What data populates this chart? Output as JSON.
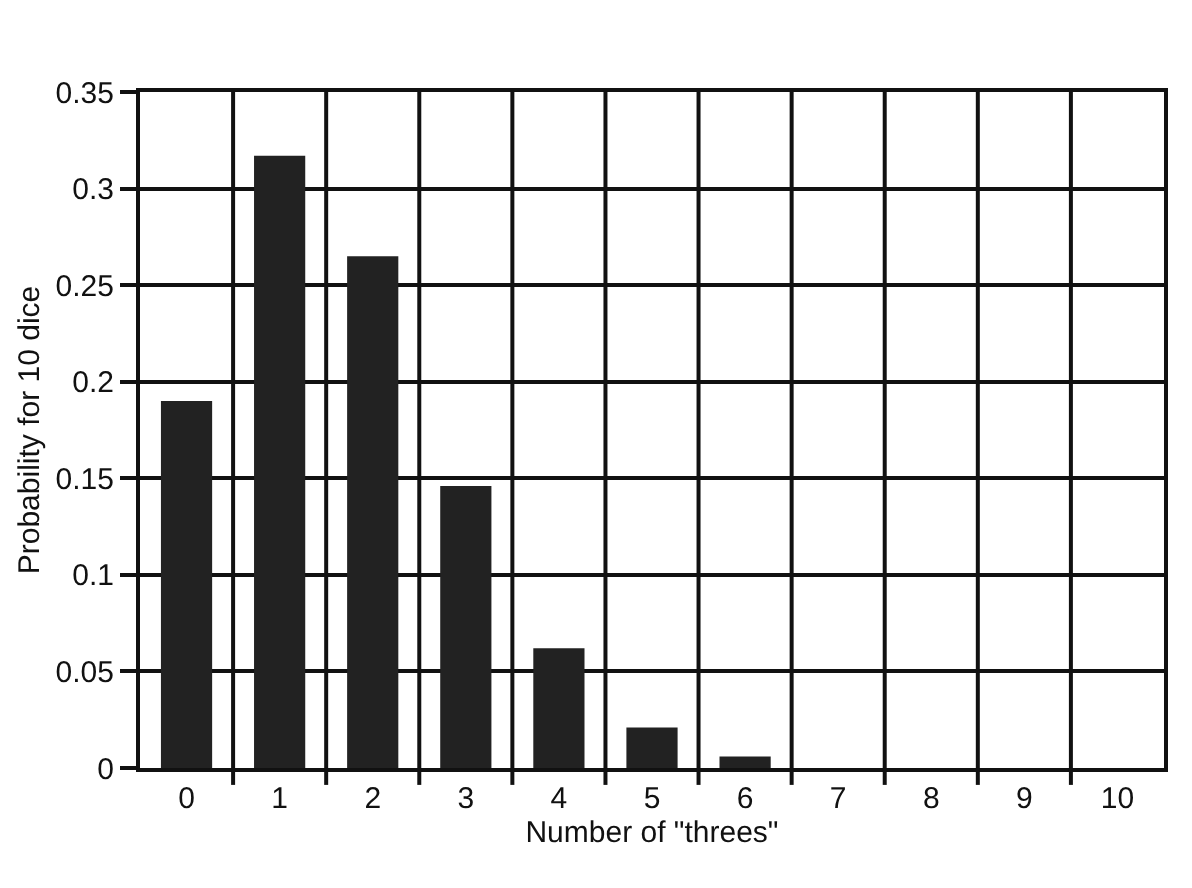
{
  "chart_data": {
    "type": "bar",
    "xlabel": "Number of \"threes\"",
    "ylabel": "Probability for 10 dice",
    "categories": [
      "0",
      "1",
      "2",
      "3",
      "4",
      "5",
      "6",
      "7",
      "8",
      "9",
      "10"
    ],
    "values": [
      0.19,
      0.317,
      0.265,
      0.146,
      0.062,
      0.021,
      0.006,
      0,
      0,
      0,
      0
    ],
    "color": "#222222",
    "ylim": [
      0,
      0.35
    ],
    "yticks": [
      0,
      0.05,
      0.1,
      0.15,
      0.2,
      0.25,
      0.3,
      0.35
    ],
    "grid": true
  }
}
